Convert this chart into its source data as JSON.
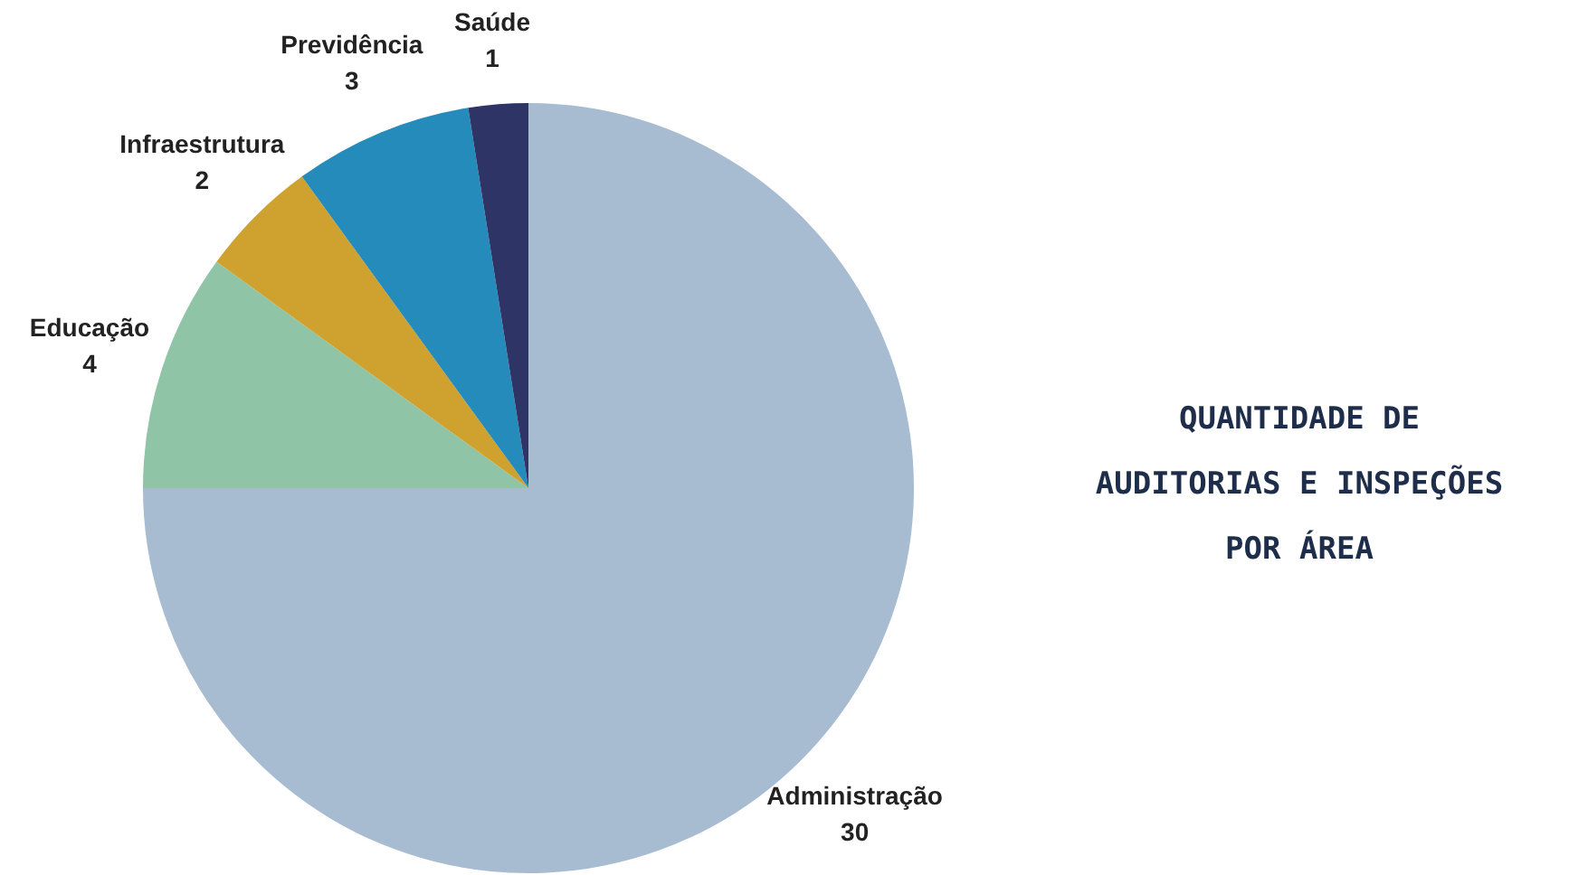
{
  "chart_data": {
    "type": "pie",
    "title": "QUANTIDADE DE AUDITORIAS E INSPEÇÕES POR ÁREA",
    "categories": [
      "Administração",
      "Educação",
      "Infraestrutura",
      "Previdência",
      "Saúde"
    ],
    "values": [
      30,
      4,
      2,
      3,
      1
    ],
    "colors": [
      "#a7bbd1",
      "#8fc4a6",
      "#cfa22f",
      "#248bbb",
      "#2e3566"
    ],
    "data_labels": true,
    "legend": false
  }
}
